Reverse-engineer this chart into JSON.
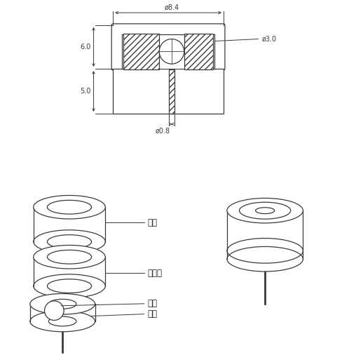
{
  "bg_color": "#ffffff",
  "line_color": "#3a3a3a",
  "dim_color": "#3a3a3a",
  "label_color": "#1a1a1a",
  "fig_width": 4.89,
  "fig_height": 5.16,
  "dim_84_label": "ø8.4",
  "dim_30_label": "ø3.0",
  "dim_60_label": "6.0",
  "dim_50_label": "5.0",
  "dim_08_label": "ø0.8",
  "cap_label": "銅帽",
  "ring_label": "络缘环",
  "ball_label": "滚珠",
  "cup_label": "导杯"
}
